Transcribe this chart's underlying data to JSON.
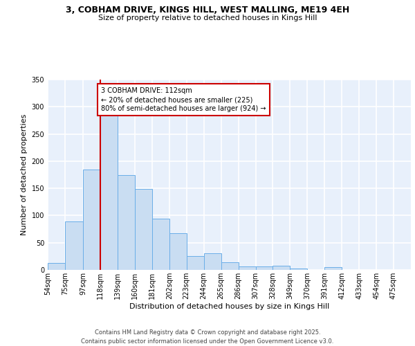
{
  "title_line1": "3, COBHAM DRIVE, KINGS HILL, WEST MALLING, ME19 4EH",
  "title_line2": "Size of property relative to detached houses in Kings Hill",
  "xlabel": "Distribution of detached houses by size in Kings Hill",
  "ylabel": "Number of detached properties",
  "bar_labels": [
    "54sqm",
    "75sqm",
    "97sqm",
    "118sqm",
    "139sqm",
    "160sqm",
    "181sqm",
    "202sqm",
    "223sqm",
    "244sqm",
    "265sqm",
    "286sqm",
    "307sqm",
    "328sqm",
    "349sqm",
    "370sqm",
    "391sqm",
    "412sqm",
    "433sqm",
    "454sqm",
    "475sqm"
  ],
  "bar_values": [
    13,
    89,
    185,
    290,
    175,
    149,
    94,
    68,
    26,
    30,
    14,
    6,
    7,
    8,
    3,
    0,
    5,
    0,
    0,
    0,
    0
  ],
  "bar_color": "#c9ddf2",
  "bar_edge_color": "#6aaee8",
  "bin_edges": [
    54,
    75,
    97,
    118,
    139,
    160,
    181,
    202,
    223,
    244,
    265,
    286,
    307,
    328,
    349,
    370,
    391,
    412,
    433,
    454,
    475,
    496
  ],
  "annotation_text": "3 COBHAM DRIVE: 112sqm\n← 20% of detached houses are smaller (225)\n80% of semi-detached houses are larger (924) →",
  "annotation_box_color": "#ffffff",
  "annotation_box_edge": "#cc0000",
  "red_line_color": "#cc0000",
  "vline_x": 118,
  "ylim": [
    0,
    350
  ],
  "yticks": [
    0,
    50,
    100,
    150,
    200,
    250,
    300,
    350
  ],
  "footer_text": "Contains HM Land Registry data © Crown copyright and database right 2025.\nContains public sector information licensed under the Open Government Licence v3.0.",
  "bg_color": "#e8f0fb",
  "grid_color": "#ffffff",
  "title_fontsize": 9,
  "subtitle_fontsize": 8,
  "ylabel_fontsize": 8,
  "xlabel_fontsize": 8,
  "tick_fontsize": 7,
  "annotation_fontsize": 7,
  "footer_fontsize": 6
}
